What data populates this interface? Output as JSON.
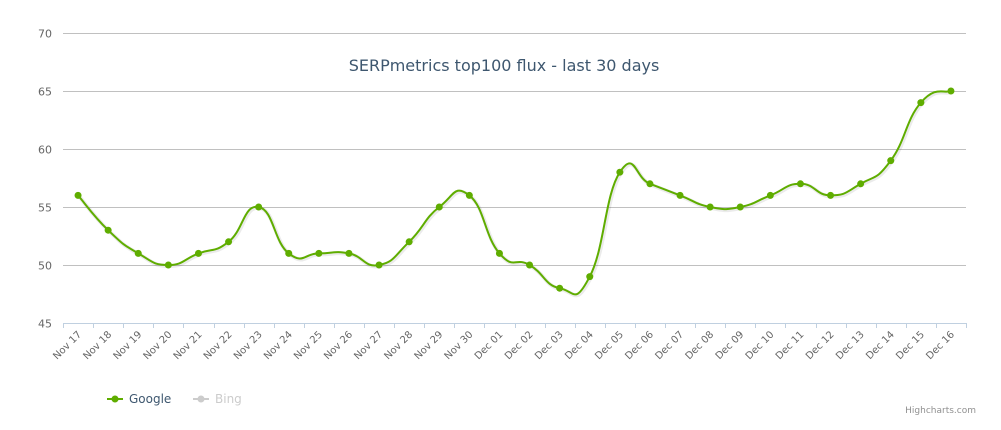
{
  "chart_data": {
    "type": "line",
    "title": "SERPmetrics top100 flux - last 30 days",
    "xlabel": "",
    "ylabel": "",
    "ylim": [
      45,
      70
    ],
    "yticks": [
      45,
      50,
      55,
      60,
      65,
      70
    ],
    "grid": true,
    "legend_position": "bottom-left",
    "categories": [
      "Nov 17",
      "Nov 18",
      "Nov 19",
      "Nov 20",
      "Nov 21",
      "Nov 22",
      "Nov 23",
      "Nov 24",
      "Nov 25",
      "Nov 26",
      "Nov 27",
      "Nov 28",
      "Nov 29",
      "Nov 30",
      "Dec 01",
      "Dec 02",
      "Dec 03",
      "Dec 04",
      "Dec 05",
      "Dec 06",
      "Dec 07",
      "Dec 08",
      "Dec 09",
      "Dec 10",
      "Dec 11",
      "Dec 12",
      "Dec 13",
      "Dec 14",
      "Dec 15",
      "Dec 16"
    ],
    "series": [
      {
        "name": "Google",
        "visible": true,
        "color": "#5fad00",
        "values": [
          56,
          53,
          51,
          50,
          51,
          52,
          55,
          51,
          51,
          51,
          50,
          52,
          55,
          56,
          51,
          50,
          48,
          49,
          58,
          57,
          56,
          55,
          55,
          56,
          57,
          56,
          57,
          59,
          64,
          65
        ]
      },
      {
        "name": "Bing",
        "visible": false,
        "color": "#cccccc",
        "values": []
      }
    ]
  },
  "legend": {
    "items": [
      {
        "label": "Google",
        "color": "#5fad00",
        "text_color": "#3e576f"
      },
      {
        "label": "Bing",
        "color": "#cccccc",
        "text_color": "#cccccc"
      }
    ]
  },
  "credits": "Highcharts.com",
  "colors": {
    "grid": "#c0c0c0",
    "axis": "#c0d0e0",
    "line": "#5fad00"
  }
}
